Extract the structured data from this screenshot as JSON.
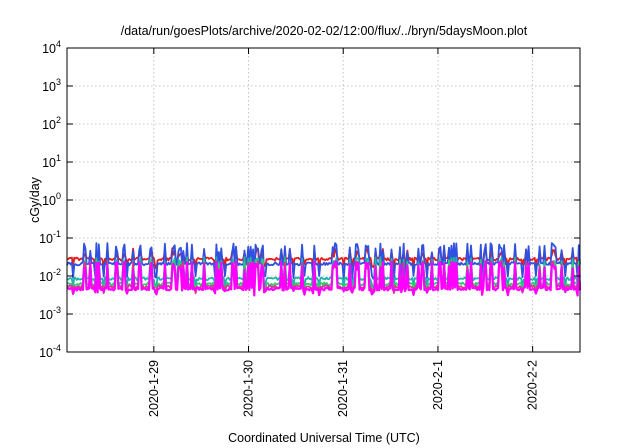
{
  "chart_data": {
    "type": "line",
    "title": "/data/run/goesPlots/archive/2020-02-02/12:00/flux/../bryn/5daysMoon.plot",
    "xlabel": "Coordinated Universal Time (UTC)",
    "ylabel": "cGy/day",
    "yscale": "log",
    "ylim_exponents": [
      -4,
      4
    ],
    "y_tick_labels": [
      {
        "base": "10",
        "exp": "4"
      },
      {
        "base": "10",
        "exp": "3"
      },
      {
        "base": "10",
        "exp": "2"
      },
      {
        "base": "10",
        "exp": "1"
      },
      {
        "base": "10",
        "exp": "0"
      },
      {
        "base": "10",
        "exp": "-1"
      },
      {
        "base": "10",
        "exp": "-2"
      },
      {
        "base": "10",
        "exp": "-3"
      },
      {
        "base": "10",
        "exp": "-4"
      }
    ],
    "x_range": [
      "2020-01-28T02:00",
      "2020-02-02T12:00"
    ],
    "x_ticks": [
      "2020-1-29",
      "2020-1-30",
      "2020-1-31",
      "2020-2-1",
      "2020-2-2"
    ],
    "grid": true,
    "legend": "none",
    "series": [
      {
        "color": "#e41a1c",
        "base": 0.028,
        "spike": 0.052,
        "dip": 0.018
      },
      {
        "color": "#3050e0",
        "base": 0.021,
        "spike": 0.07,
        "dip": 0.009
      },
      {
        "color": "#20b2aa",
        "base": 0.0085,
        "spike": 0.03,
        "dip": 0.0055
      },
      {
        "color": "#2ecc71",
        "base": 0.0062,
        "spike": 0.026,
        "dip": 0.0045
      },
      {
        "color": "#d63a8a",
        "base": 0.0052,
        "spike": 0.024,
        "dip": 0.004
      },
      {
        "color": "#ff00ff",
        "base": 0.0046,
        "spike": 0.023,
        "dip": 0.0036
      }
    ]
  }
}
